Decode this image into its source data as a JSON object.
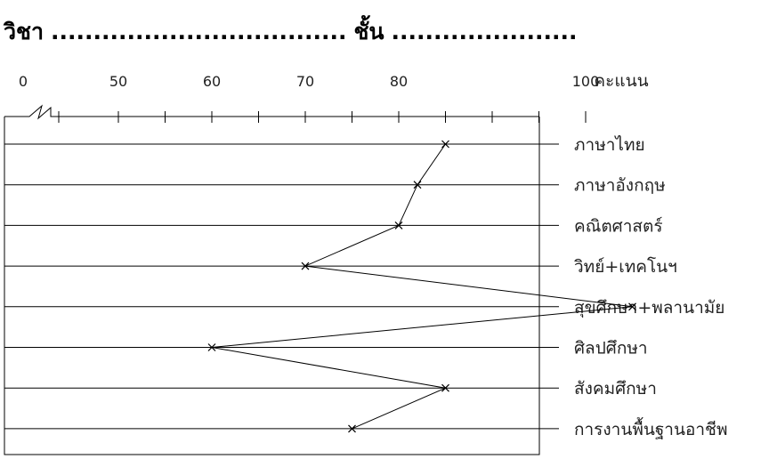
{
  "header": {
    "subject_label": "วิชา",
    "subject_dots": "...................................",
    "grade_label": "ชั้น",
    "grade_dots": "......................"
  },
  "chart_data": {
    "type": "line",
    "orientation": "horizontal",
    "title": "",
    "xlabel": "คะแนน",
    "ylabel": "",
    "x_ticks": [
      0,
      50,
      60,
      70,
      80,
      100
    ],
    "x_axis_break": true,
    "xlim": [
      45,
      105
    ],
    "grid": true,
    "categories": [
      "ภาษาไทย",
      "ภาษาอังกฤษ",
      "คณิตศาสตร์",
      "วิทย์+เทคโนฯ",
      "สุขศึกษา+พลานามัย",
      "ศิลปศึกษา",
      "สังคมศึกษา",
      "การงานพื้นฐานอาชีพ"
    ],
    "series": [
      {
        "values": [
          85,
          82,
          80,
          70,
          105,
          60,
          85,
          75
        ]
      }
    ],
    "marker": "x",
    "colors": {
      "line": "#000000",
      "grid": "#000000"
    }
  }
}
